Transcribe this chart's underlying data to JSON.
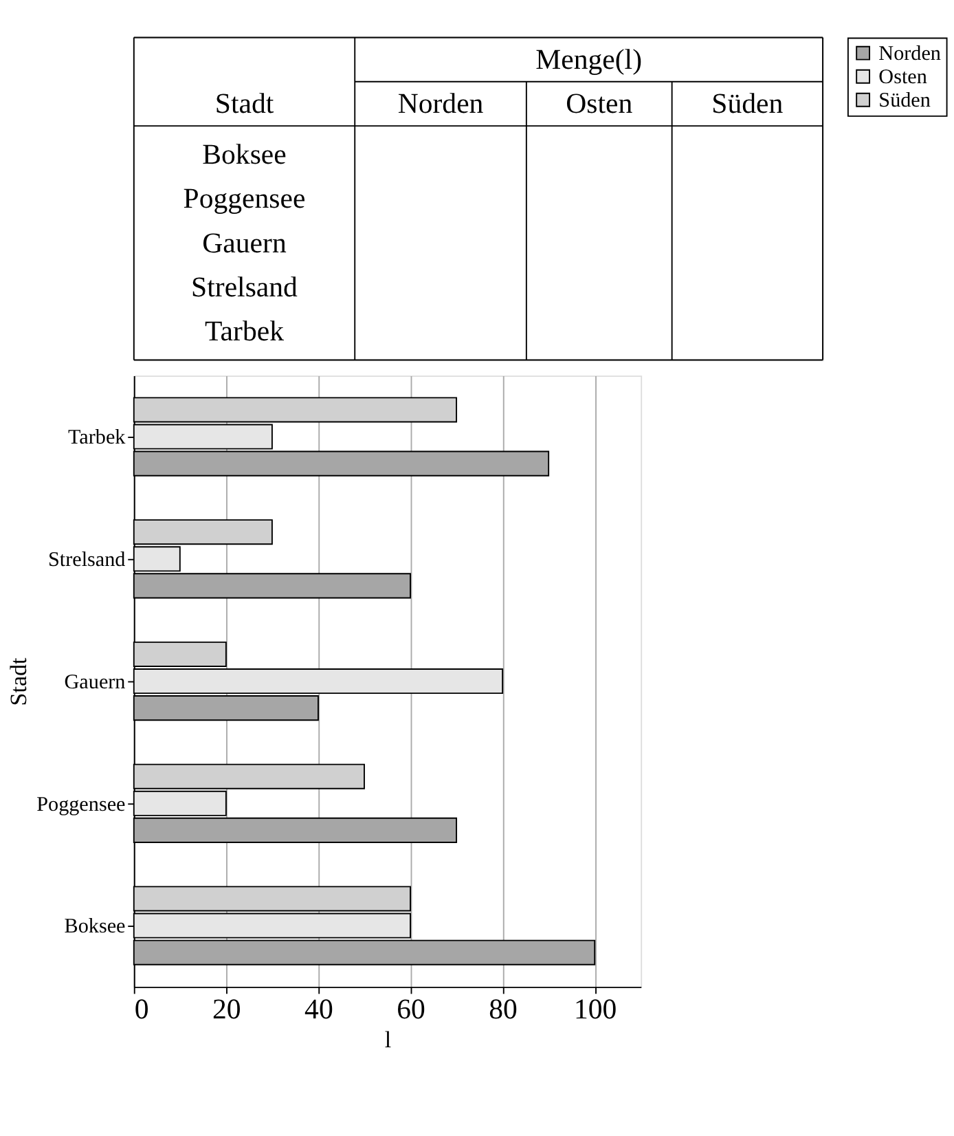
{
  "chart_data": [
    {
      "type": "other",
      "title": "Menge(l)",
      "ylabel": "Stadt",
      "categories": [
        "Norden",
        "Osten",
        "Süden"
      ],
      "y_categories": [
        "Boksee",
        "Poggensee",
        "Gauern",
        "Strelsand",
        "Tarbek"
      ]
    },
    {
      "type": "bar",
      "orientation": "horizontal",
      "xlabel": "l",
      "ylabel": "Stadt",
      "categories": [
        "Tarbek",
        "Strelsand",
        "Gauern",
        "Poggensee",
        "Boksee"
      ],
      "series": [
        {
          "name": "Norden",
          "color": "#a6a6a6",
          "values": [
            90,
            60,
            40,
            70,
            100
          ]
        },
        {
          "name": "Osten",
          "color": "#e6e6e6",
          "values": [
            30,
            10,
            80,
            20,
            60
          ]
        },
        {
          "name": "Süden",
          "color": "#d0d0d0",
          "values": [
            70,
            30,
            20,
            50,
            60
          ]
        }
      ],
      "xlim": [
        0,
        110
      ],
      "xticks": [
        0,
        20,
        40,
        60,
        80,
        100
      ],
      "grid": "x",
      "legend": "right"
    }
  ]
}
